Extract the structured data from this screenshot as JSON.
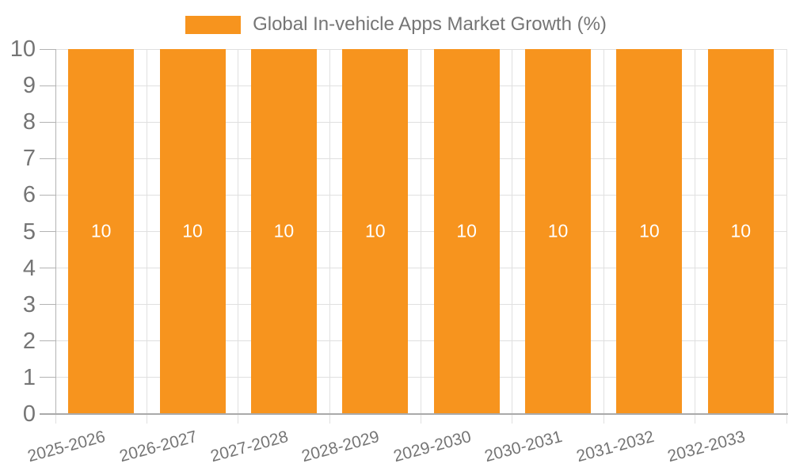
{
  "colors": {
    "bar": "#f7941e",
    "bar_label": "#ffffff",
    "grid": "#e0e0e0",
    "axis": "#aaaaaa",
    "tick": "#b3b3b3",
    "text": "#757575",
    "background": "#ffffff"
  },
  "legend": {
    "label": "Global In-vehicle Apps Market Growth (%)"
  },
  "chart_data": {
    "type": "bar",
    "title": "Global In-vehicle Apps Market Growth (%)",
    "categories": [
      "2025-2026",
      "2026-2027",
      "2027-2028",
      "2028-2029",
      "2029-2030",
      "2030-2031",
      "2031-2032",
      "2032-2033"
    ],
    "values": [
      10,
      10,
      10,
      10,
      10,
      10,
      10,
      10
    ],
    "bar_value_labels": [
      "10",
      "10",
      "10",
      "10",
      "10",
      "10",
      "10",
      "10"
    ],
    "xlabel": "",
    "ylabel": "",
    "ylim": [
      0,
      10
    ],
    "yticks": [
      0,
      1,
      2,
      3,
      4,
      5,
      6,
      7,
      8,
      9,
      10
    ],
    "grid": true,
    "legend_position": "top-center",
    "x_label_rotation_deg": 15
  }
}
